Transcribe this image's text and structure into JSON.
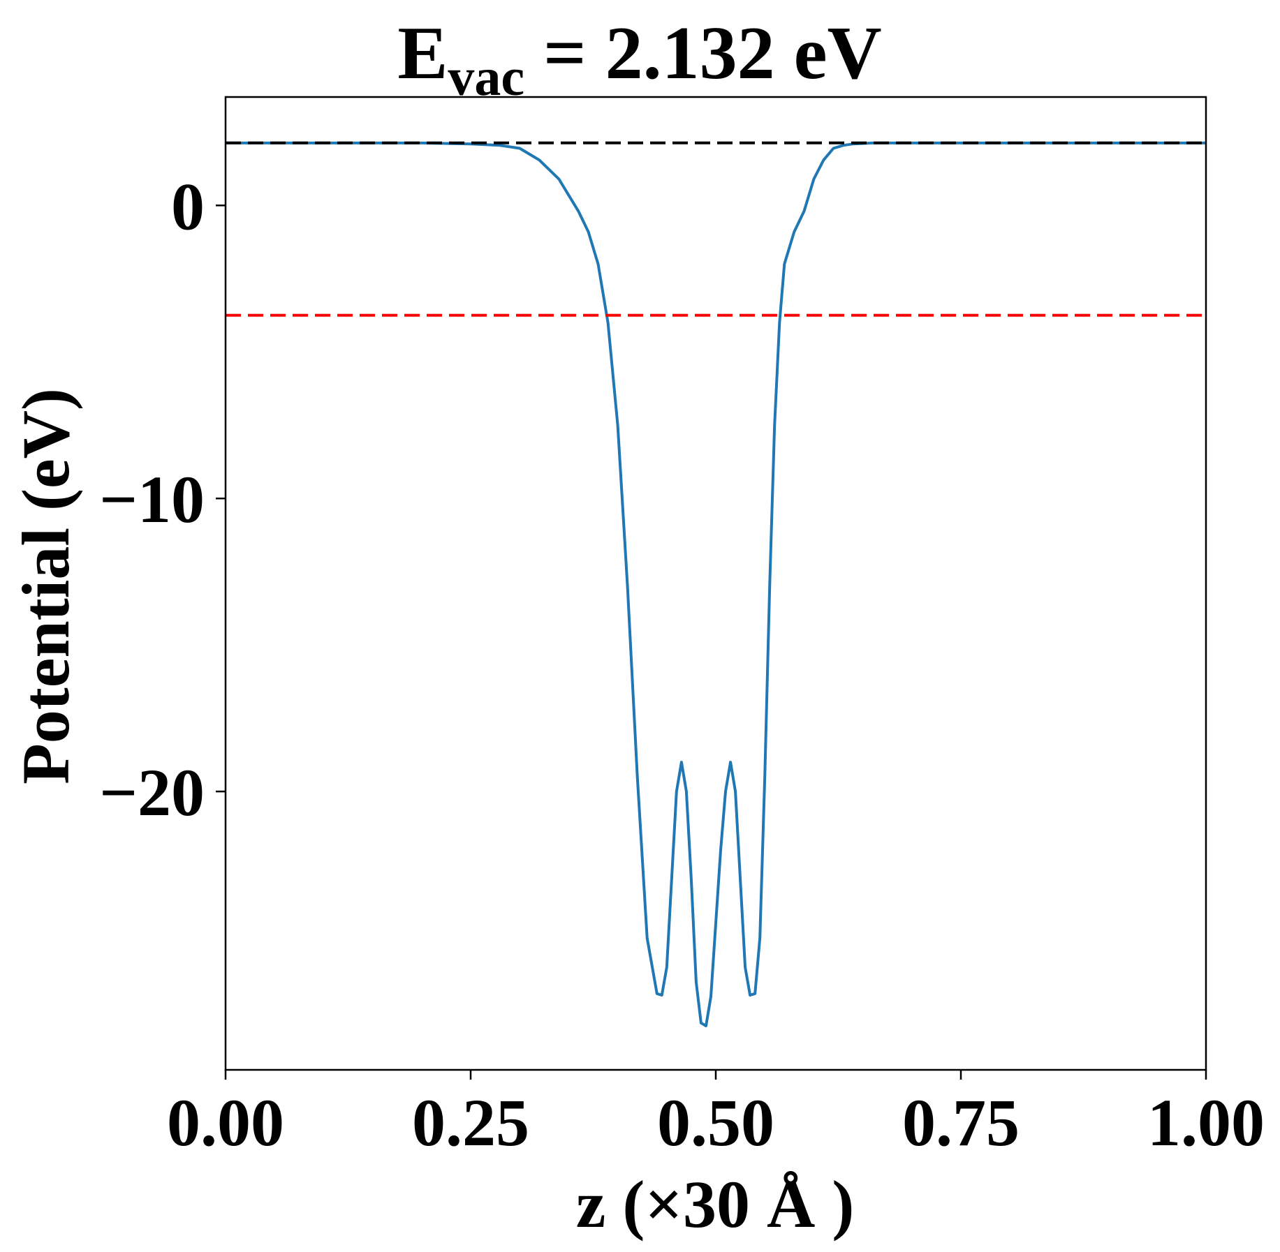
{
  "chart_data": {
    "type": "line",
    "title": {
      "base": "E",
      "subscript": "vac",
      "rest": " = 2.132 eV"
    },
    "xlabel": "z (×30 Å )",
    "ylabel": "Potential (eV)",
    "xlim": [
      0.0,
      1.0
    ],
    "ylim": [
      -29.5,
      3.7
    ],
    "x_ticks": [
      0.0,
      0.25,
      0.5,
      0.75,
      1.0
    ],
    "x_tick_labels": [
      "0.00",
      "0.25",
      "0.50",
      "0.75",
      "1.00"
    ],
    "y_ticks": [
      0,
      -10,
      -20
    ],
    "y_tick_labels": [
      "0",
      "−10",
      "−20"
    ],
    "grid": false,
    "legend": "none",
    "series": [
      {
        "color": "#1f77b4",
        "style": "solid",
        "x": [
          0.0,
          0.05,
          0.1,
          0.15,
          0.2,
          0.25,
          0.28,
          0.3,
          0.32,
          0.34,
          0.36,
          0.37,
          0.38,
          0.39,
          0.4,
          0.41,
          0.42,
          0.43,
          0.44,
          0.445,
          0.45,
          0.455,
          0.46,
          0.465,
          0.47,
          0.475,
          0.48,
          0.485,
          0.49,
          0.495,
          0.5,
          0.505,
          0.51,
          0.515,
          0.52,
          0.525,
          0.53,
          0.535,
          0.54,
          0.545,
          0.55,
          0.555,
          0.56,
          0.565,
          0.57,
          0.58,
          0.59,
          0.6,
          0.61,
          0.62,
          0.63,
          0.64,
          0.66,
          0.68,
          0.7,
          0.72,
          0.75,
          0.8,
          0.85,
          0.9,
          0.95,
          1.0
        ],
        "y": [
          2.13,
          2.13,
          2.13,
          2.13,
          2.13,
          2.1,
          2.05,
          1.95,
          1.55,
          0.9,
          -0.2,
          -0.9,
          -2.0,
          -4.0,
          -7.5,
          -13.0,
          -19.5,
          -25.0,
          -26.9,
          -26.95,
          -26.0,
          -23.0,
          -20.0,
          -19.0,
          -20.0,
          -23.0,
          -26.5,
          -27.9,
          -28.0,
          -27.0,
          -24.5,
          -22.0,
          -20.0,
          -19.0,
          -20.0,
          -23.0,
          -26.0,
          -26.95,
          -26.9,
          -25.0,
          -19.5,
          -13.0,
          -7.5,
          -4.0,
          -2.0,
          -0.9,
          -0.2,
          0.9,
          1.55,
          1.95,
          2.05,
          2.1,
          2.13,
          2.13,
          2.13,
          2.13,
          2.13,
          2.13,
          2.13,
          2.13,
          2.13,
          2.13
        ]
      },
      {
        "color": "#000000",
        "style": "dashed",
        "x": [
          0.0,
          1.0
        ],
        "y": [
          2.132,
          2.132
        ]
      },
      {
        "color": "#ff0000",
        "style": "dashed",
        "x": [
          0.0,
          1.0
        ],
        "y": [
          -3.75,
          -3.75
        ]
      }
    ]
  }
}
